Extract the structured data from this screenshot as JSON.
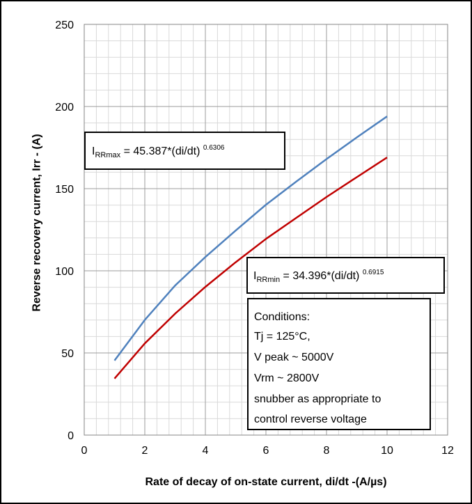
{
  "chart_data": {
    "type": "line",
    "title": "",
    "xlabel": "Rate of decay of on-state current, di/dt  -(A/µs)",
    "ylabel": "Reverse recovery current, Irr  - (A)",
    "xlim": [
      0,
      12
    ],
    "ylim": [
      0,
      250
    ],
    "x_ticks": [
      "0",
      "2",
      "4",
      "6",
      "8",
      "10",
      "12"
    ],
    "y_ticks": [
      "0",
      "50",
      "100",
      "150",
      "200",
      "250"
    ],
    "grid": true,
    "series": [
      {
        "color": "#4f81bd",
        "points": [
          [
            1,
            45.4
          ],
          [
            2,
            70.1
          ],
          [
            3,
            91.0
          ],
          [
            4,
            108.4
          ],
          [
            5,
            124.5
          ],
          [
            6,
            140.2
          ],
          [
            7,
            154.3
          ],
          [
            8,
            168.0
          ],
          [
            9,
            181.2
          ],
          [
            10,
            194.0
          ]
        ]
      },
      {
        "color": "#c00000",
        "points": [
          [
            1,
            34.4
          ],
          [
            2,
            55.8
          ],
          [
            3,
            73.9
          ],
          [
            4,
            90.2
          ],
          [
            5,
            105.2
          ],
          [
            6,
            119.4
          ],
          [
            7,
            132.2
          ],
          [
            8,
            144.9
          ],
          [
            9,
            157.0
          ],
          [
            10,
            169.0
          ]
        ]
      }
    ],
    "annotations": {
      "irrmax": {
        "pre": "I",
        "sub": "RRmax",
        "body": " = 45.387*(di/dt) ",
        "sup": "0.6306"
      },
      "irrmin": {
        "pre": "I",
        "sub": "RRmin",
        "body": " = 34.396*(di/dt) ",
        "sup": "0.6915"
      },
      "conditions": [
        "Conditions:",
        "Tj = 125°C,",
        "V peak ~ 5000V",
        "Vrm ~ 2800V",
        "snubber as appropriate to",
        "control reverse voltage"
      ]
    }
  }
}
